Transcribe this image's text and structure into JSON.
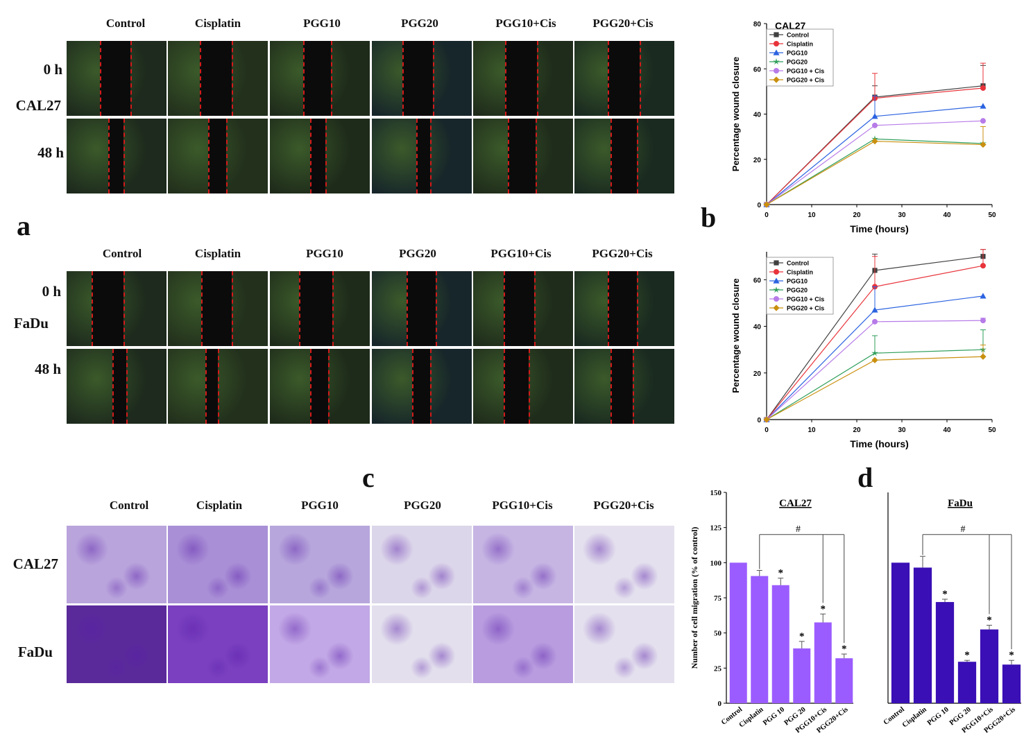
{
  "panel_letters": {
    "a": "a",
    "b": "b",
    "c": "c",
    "d": "d"
  },
  "scratch_assay": {
    "headers": [
      "Control",
      "Cisplatin",
      "PGG10",
      "PGG20",
      "PGG10+Cis",
      "PGG20+Cis"
    ],
    "cal27": {
      "time0": "0 h",
      "cell_line": "CAL27",
      "time48": "48 h"
    },
    "fadu": {
      "time0": "0 h",
      "cell_line": "FaDu",
      "time48": "48 h"
    }
  },
  "transwell": {
    "headers": [
      "Control",
      "Cisplatin",
      "PGG10",
      "PGG20",
      "PGG10+Cis",
      "PGG20+Cis"
    ],
    "row_labels": [
      "CAL27",
      "FaDu"
    ]
  },
  "chart_data": [
    {
      "type": "line",
      "title": "CAL27",
      "xlabel": "Time (hours)",
      "ylabel": "Percentage wound closure",
      "xlim": [
        0,
        50
      ],
      "ylim": [
        0,
        80
      ],
      "xticks": [
        0,
        10,
        20,
        30,
        40,
        50
      ],
      "yticks": [
        0,
        20,
        40,
        60,
        80
      ],
      "x": [
        0,
        24,
        48
      ],
      "series": [
        {
          "name": "Control",
          "color": "#404040",
          "marker": "square",
          "values": [
            0,
            47.5,
            52.5
          ],
          "errors": [
            0,
            5,
            9
          ]
        },
        {
          "name": "Cisplatin",
          "color": "#e8333a",
          "marker": "circle",
          "values": [
            0,
            47,
            51.5
          ],
          "errors": [
            0,
            11,
            11
          ]
        },
        {
          "name": "PGG10",
          "color": "#2b63e0",
          "marker": "triangle",
          "values": [
            0,
            39,
            43.5
          ],
          "errors": [
            0,
            9,
            0
          ]
        },
        {
          "name": "PGG20",
          "color": "#2e9e5a",
          "marker": "star",
          "values": [
            0,
            29,
            27
          ],
          "errors": [
            0,
            0,
            0
          ]
        },
        {
          "name": "PGG10 + Cis",
          "color": "#b77be8",
          "marker": "circle",
          "values": [
            0,
            35,
            37
          ],
          "errors": [
            0,
            0,
            0
          ]
        },
        {
          "name": "PGG20 + Cis",
          "color": "#c9900f",
          "marker": "diamond",
          "values": [
            0,
            28,
            26.5
          ],
          "errors": [
            0,
            0,
            8
          ]
        }
      ]
    },
    {
      "type": "line",
      "title": "",
      "xlabel": "Time (hours)",
      "ylabel": "Percentage wound closure",
      "xlim": [
        0,
        50
      ],
      "ylim": [
        0,
        72
      ],
      "xticks": [
        0,
        10,
        20,
        30,
        40,
        50
      ],
      "yticks": [
        0,
        20,
        40,
        60
      ],
      "x": [
        0,
        24,
        48
      ],
      "series": [
        {
          "name": "Control",
          "color": "#404040",
          "marker": "square",
          "values": [
            0,
            64,
            70
          ],
          "errors": [
            0,
            7,
            3
          ]
        },
        {
          "name": "Cisplatin",
          "color": "#e8333a",
          "marker": "circle",
          "values": [
            0,
            57,
            66
          ],
          "errors": [
            0,
            13,
            7
          ]
        },
        {
          "name": "PGG10",
          "color": "#2b63e0",
          "marker": "triangle",
          "values": [
            0,
            47,
            53
          ],
          "errors": [
            0,
            10,
            0
          ]
        },
        {
          "name": "PGG20",
          "color": "#2e9e5a",
          "marker": "star",
          "values": [
            0,
            28.5,
            30
          ],
          "errors": [
            0,
            7.5,
            8.5
          ]
        },
        {
          "name": "PGG10 + Cis",
          "color": "#b77be8",
          "marker": "circle",
          "values": [
            0,
            42,
            42.5
          ],
          "errors": [
            0,
            0,
            1
          ]
        },
        {
          "name": "PGG20 + Cis",
          "color": "#c9900f",
          "marker": "diamond",
          "values": [
            0,
            25.5,
            27
          ],
          "errors": [
            0,
            0,
            5
          ]
        }
      ]
    },
    {
      "type": "bar",
      "title": "CAL27",
      "xlabel": "",
      "ylabel": "Number of cell migration (% of control)",
      "ylim": [
        0,
        150
      ],
      "yticks": [
        0,
        25,
        50,
        75,
        100,
        125,
        150
      ],
      "categories": [
        "Control",
        "Cisplatin",
        "PGG 10",
        "PGG 20",
        "PGG10+Cis",
        "PGG20+Cis"
      ],
      "values": [
        100,
        90.5,
        84,
        39,
        57.5,
        32
      ],
      "errors": [
        0,
        4,
        5,
        5,
        6,
        3
      ],
      "significance": [
        "",
        "",
        "*",
        "*",
        "*",
        "*"
      ],
      "bracket_label": "#",
      "color": "#9b5cff"
    },
    {
      "type": "bar",
      "title": "FaDu",
      "xlabel": "",
      "ylabel": "",
      "ylim": [
        0,
        150
      ],
      "categories": [
        "Control",
        "Cisplatin",
        "PGG 10",
        "PGG 20",
        "PGG10+Cis",
        "PGG20+Cis"
      ],
      "values": [
        100,
        96.5,
        72,
        29.5,
        52.5,
        27.5
      ],
      "errors": [
        0,
        8,
        2,
        1,
        3,
        3
      ],
      "significance": [
        "",
        "",
        "*",
        "*",
        "*",
        "*"
      ],
      "bracket_label": "#",
      "color": "#3a0fb5"
    }
  ]
}
